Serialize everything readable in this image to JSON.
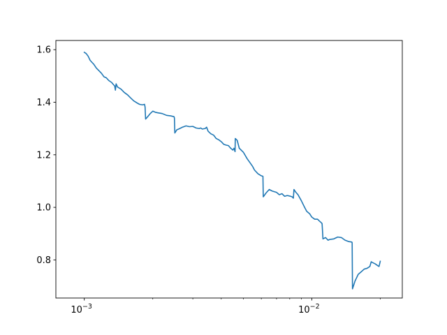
{
  "chart_data": {
    "type": "line",
    "title": "",
    "xlabel": "",
    "ylabel": "",
    "xscale": "log",
    "xlim": [
      0.00075,
      0.025
    ],
    "ylim": [
      0.655,
      1.635
    ],
    "grid": false,
    "legend": "none",
    "colors": {
      "line": "#1f77b4",
      "axes": "#000000",
      "background": "#ffffff"
    },
    "x_ticks": [
      {
        "value": 0.001,
        "base": "10",
        "exp": "−3"
      },
      {
        "value": 0.01,
        "base": "10",
        "exp": "−2"
      }
    ],
    "x_minor_ticks": [
      0.002,
      0.003,
      0.004,
      0.005,
      0.006,
      0.007,
      0.008,
      0.009,
      0.02
    ],
    "y_ticks": [
      {
        "value": 0.8,
        "label": "0.8"
      },
      {
        "value": 1.0,
        "label": "1.0"
      },
      {
        "value": 1.2,
        "label": "1.2"
      },
      {
        "value": 1.4,
        "label": "1.4"
      },
      {
        "value": 1.6,
        "label": "1.6"
      }
    ],
    "series": [
      {
        "color": "#1f77b4",
        "points": [
          [
            0.001,
            1.59
          ],
          [
            0.00102,
            1.585
          ],
          [
            0.00104,
            1.575
          ],
          [
            0.00106,
            1.56
          ],
          [
            0.00108,
            1.552
          ],
          [
            0.0011,
            1.545
          ],
          [
            0.00113,
            1.53
          ],
          [
            0.00116,
            1.52
          ],
          [
            0.00119,
            1.51
          ],
          [
            0.00122,
            1.497
          ],
          [
            0.00125,
            1.493
          ],
          [
            0.00128,
            1.483
          ],
          [
            0.00132,
            1.475
          ],
          [
            0.00134,
            1.468
          ],
          [
            0.00136,
            1.462
          ],
          [
            0.00137,
            1.446
          ],
          [
            0.00138,
            1.47
          ],
          [
            0.0014,
            1.458
          ],
          [
            0.00145,
            1.45
          ],
          [
            0.0015,
            1.437
          ],
          [
            0.00155,
            1.428
          ],
          [
            0.0016,
            1.416
          ],
          [
            0.00165,
            1.405
          ],
          [
            0.0017,
            1.398
          ],
          [
            0.00175,
            1.392
          ],
          [
            0.0018,
            1.39
          ],
          [
            0.00184,
            1.392
          ],
          [
            0.00185,
            1.382
          ],
          [
            0.00186,
            1.336
          ],
          [
            0.0019,
            1.345
          ],
          [
            0.00195,
            1.357
          ],
          [
            0.002,
            1.366
          ],
          [
            0.00205,
            1.362
          ],
          [
            0.0021,
            1.36
          ],
          [
            0.0022,
            1.357
          ],
          [
            0.0023,
            1.35
          ],
          [
            0.0024,
            1.348
          ],
          [
            0.00248,
            1.345
          ],
          [
            0.00249,
            1.34
          ],
          [
            0.0025,
            1.283
          ],
          [
            0.00255,
            1.295
          ],
          [
            0.0026,
            1.298
          ],
          [
            0.0027,
            1.305
          ],
          [
            0.0028,
            1.31
          ],
          [
            0.0029,
            1.307
          ],
          [
            0.003,
            1.308
          ],
          [
            0.0031,
            1.302
          ],
          [
            0.0032,
            1.3
          ],
          [
            0.00325,
            1.302
          ],
          [
            0.0033,
            1.298
          ],
          [
            0.0034,
            1.3
          ],
          [
            0.00345,
            1.305
          ],
          [
            0.0035,
            1.29
          ],
          [
            0.0036,
            1.28
          ],
          [
            0.0037,
            1.275
          ],
          [
            0.0038,
            1.262
          ],
          [
            0.0039,
            1.257
          ],
          [
            0.004,
            1.25
          ],
          [
            0.0041,
            1.24
          ],
          [
            0.0042,
            1.237
          ],
          [
            0.0043,
            1.235
          ],
          [
            0.0044,
            1.225
          ],
          [
            0.0045,
            1.218
          ],
          [
            0.00455,
            1.225
          ],
          [
            0.0046,
            1.212
          ],
          [
            0.00461,
            1.262
          ],
          [
            0.0047,
            1.255
          ],
          [
            0.0048,
            1.225
          ],
          [
            0.005,
            1.21
          ],
          [
            0.0052,
            1.185
          ],
          [
            0.0054,
            1.165
          ],
          [
            0.0055,
            1.155
          ],
          [
            0.0056,
            1.142
          ],
          [
            0.0058,
            1.128
          ],
          [
            0.006,
            1.12
          ],
          [
            0.0061,
            1.118
          ],
          [
            0.00612,
            1.04
          ],
          [
            0.0063,
            1.055
          ],
          [
            0.0065,
            1.068
          ],
          [
            0.0067,
            1.062
          ],
          [
            0.007,
            1.057
          ],
          [
            0.0072,
            1.048
          ],
          [
            0.0074,
            1.052
          ],
          [
            0.0076,
            1.042
          ],
          [
            0.0078,
            1.045
          ],
          [
            0.008,
            1.043
          ],
          [
            0.0082,
            1.04
          ],
          [
            0.0083,
            1.035
          ],
          [
            0.00835,
            1.068
          ],
          [
            0.0085,
            1.058
          ],
          [
            0.0087,
            1.048
          ],
          [
            0.009,
            1.025
          ],
          [
            0.0093,
            1.0
          ],
          [
            0.0095,
            0.985
          ],
          [
            0.0098,
            0.975
          ],
          [
            0.01,
            0.963
          ],
          [
            0.0103,
            0.955
          ],
          [
            0.0106,
            0.955
          ],
          [
            0.0108,
            0.948
          ],
          [
            0.011,
            0.942
          ],
          [
            0.0111,
            0.938
          ],
          [
            0.0112,
            0.88
          ],
          [
            0.0115,
            0.885
          ],
          [
            0.0118,
            0.875
          ],
          [
            0.012,
            0.878
          ],
          [
            0.0125,
            0.88
          ],
          [
            0.013,
            0.887
          ],
          [
            0.0135,
            0.885
          ],
          [
            0.014,
            0.875
          ],
          [
            0.0145,
            0.87
          ],
          [
            0.015,
            0.868
          ],
          [
            0.01505,
            0.865
          ],
          [
            0.0151,
            0.69
          ],
          [
            0.0155,
            0.72
          ],
          [
            0.016,
            0.745
          ],
          [
            0.0165,
            0.755
          ],
          [
            0.017,
            0.765
          ],
          [
            0.0175,
            0.768
          ],
          [
            0.018,
            0.775
          ],
          [
            0.01825,
            0.793
          ],
          [
            0.0185,
            0.79
          ],
          [
            0.019,
            0.785
          ],
          [
            0.0195,
            0.778
          ],
          [
            0.01975,
            0.775
          ],
          [
            0.02,
            0.795
          ]
        ]
      }
    ]
  }
}
